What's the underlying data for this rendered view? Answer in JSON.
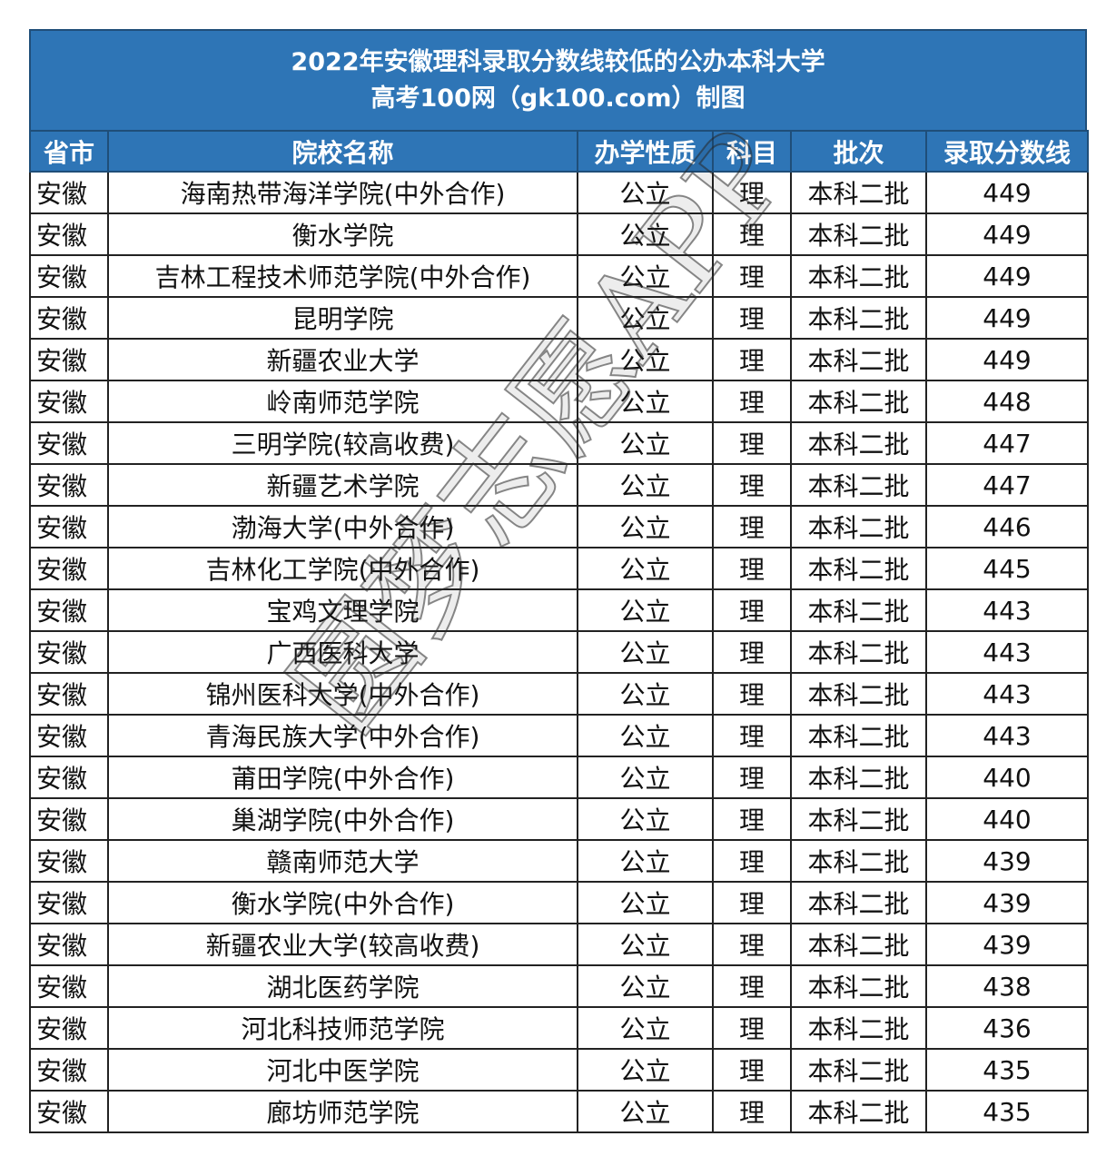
{
  "title": {
    "line1": "2022年安徽理科录取分数线较低的公办本科大学",
    "line2": "高考100网（gk100.com）制图"
  },
  "columns": [
    "省市",
    "院校名称",
    "办学性质",
    "科目",
    "批次",
    "录取分数线"
  ],
  "rows": [
    [
      "安徽",
      "海南热带海洋学院(中外合作)",
      "公立",
      "理",
      "本科二批",
      "449"
    ],
    [
      "安徽",
      "衡水学院",
      "公立",
      "理",
      "本科二批",
      "449"
    ],
    [
      "安徽",
      "吉林工程技术师范学院(中外合作)",
      "公立",
      "理",
      "本科二批",
      "449"
    ],
    [
      "安徽",
      "昆明学院",
      "公立",
      "理",
      "本科二批",
      "449"
    ],
    [
      "安徽",
      "新疆农业大学",
      "公立",
      "理",
      "本科二批",
      "449"
    ],
    [
      "安徽",
      "岭南师范学院",
      "公立",
      "理",
      "本科二批",
      "448"
    ],
    [
      "安徽",
      "三明学院(较高收费)",
      "公立",
      "理",
      "本科二批",
      "447"
    ],
    [
      "安徽",
      "新疆艺术学院",
      "公立",
      "理",
      "本科二批",
      "447"
    ],
    [
      "安徽",
      "渤海大学(中外合作)",
      "公立",
      "理",
      "本科二批",
      "446"
    ],
    [
      "安徽",
      "吉林化工学院(中外合作)",
      "公立",
      "理",
      "本科二批",
      "445"
    ],
    [
      "安徽",
      "宝鸡文理学院",
      "公立",
      "理",
      "本科二批",
      "443"
    ],
    [
      "安徽",
      "广西医科大学",
      "公立",
      "理",
      "本科二批",
      "443"
    ],
    [
      "安徽",
      "锦州医科大学(中外合作)",
      "公立",
      "理",
      "本科二批",
      "443"
    ],
    [
      "安徽",
      "青海民族大学(中外合作)",
      "公立",
      "理",
      "本科二批",
      "443"
    ],
    [
      "安徽",
      "莆田学院(中外合作)",
      "公立",
      "理",
      "本科二批",
      "440"
    ],
    [
      "安徽",
      "巢湖学院(中外合作)",
      "公立",
      "理",
      "本科二批",
      "440"
    ],
    [
      "安徽",
      "赣南师范大学",
      "公立",
      "理",
      "本科二批",
      "439"
    ],
    [
      "安徽",
      "衡水学院(中外合作)",
      "公立",
      "理",
      "本科二批",
      "439"
    ],
    [
      "安徽",
      "新疆农业大学(较高收费)",
      "公立",
      "理",
      "本科二批",
      "439"
    ],
    [
      "安徽",
      "湖北医药学院",
      "公立",
      "理",
      "本科二批",
      "438"
    ],
    [
      "安徽",
      "河北科技师范学院",
      "公立",
      "理",
      "本科二批",
      "436"
    ],
    [
      "安徽",
      "河北中医学院",
      "公立",
      "理",
      "本科二批",
      "435"
    ],
    [
      "安徽",
      "廊坊师范学院",
      "公立",
      "理",
      "本科二批",
      "435"
    ]
  ],
  "watermark": "圆梦志愿APP",
  "colors": {
    "header_bg": "#2e75b6",
    "header_text": "#ffffff"
  }
}
